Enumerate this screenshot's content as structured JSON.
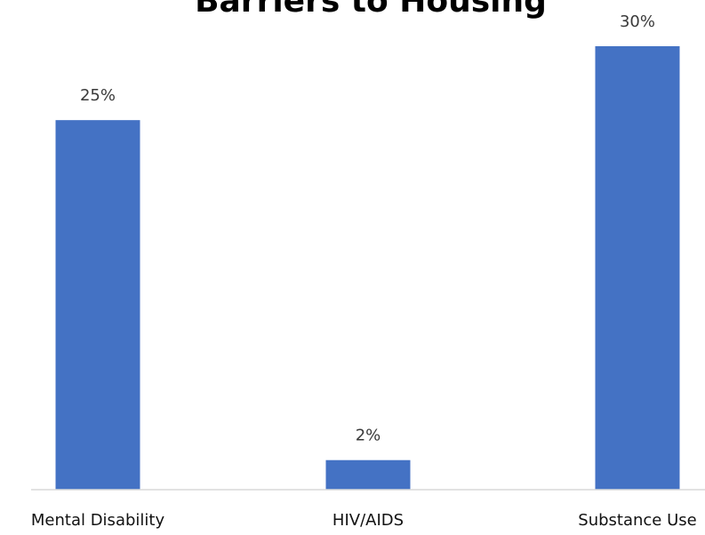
{
  "chart_data": {
    "type": "bar",
    "title": "Barriers to Housing",
    "categories": [
      "Mental Disability",
      "HIV/AIDS",
      "Substance Use"
    ],
    "values": [
      25,
      2,
      30
    ],
    "data_labels": [
      "25%",
      "2%",
      "30%"
    ],
    "ylim": [
      0,
      30
    ],
    "grid": false,
    "legend": "none",
    "bar_color": "#4472C4",
    "baseline_color": "#d9d9d9"
  }
}
